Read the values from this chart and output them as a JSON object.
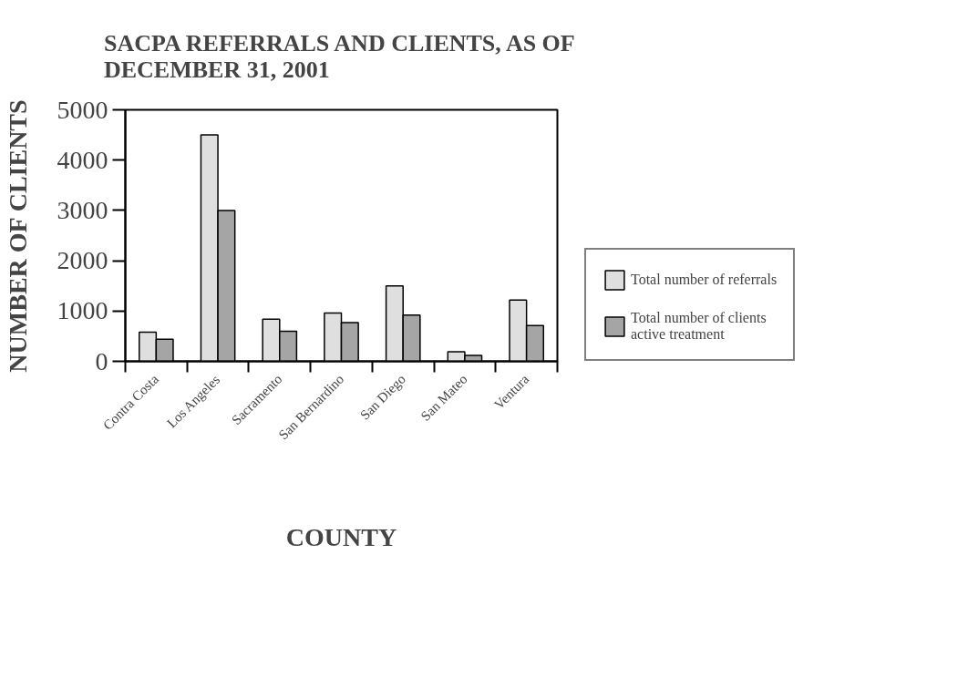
{
  "chart_data": {
    "type": "bar",
    "title": "SACPA REFERRALS AND CLIENTS, AS OF DECEMBER 31, 2001",
    "xlabel": "COUNTY",
    "ylabel": "NUMBER OF CLIENTS",
    "categories": [
      "Contra Costa",
      "Los Angeles",
      "Sacramento",
      "San Bernardino",
      "San Diego",
      "San Mateo",
      "Ventura"
    ],
    "series": [
      {
        "name": "Total number of referrals",
        "color": "#dfdfdf",
        "values": [
          580,
          4500,
          840,
          960,
          1500,
          190,
          1220
        ]
      },
      {
        "name": "Total number of clients active treatment",
        "color": "#a5a5a5",
        "values": [
          440,
          3000,
          600,
          770,
          920,
          120,
          710
        ]
      }
    ],
    "ylim": [
      0,
      5000
    ],
    "yticks": [
      0,
      1000,
      2000,
      3000,
      4000,
      5000
    ],
    "grid": false,
    "legend": "right"
  }
}
